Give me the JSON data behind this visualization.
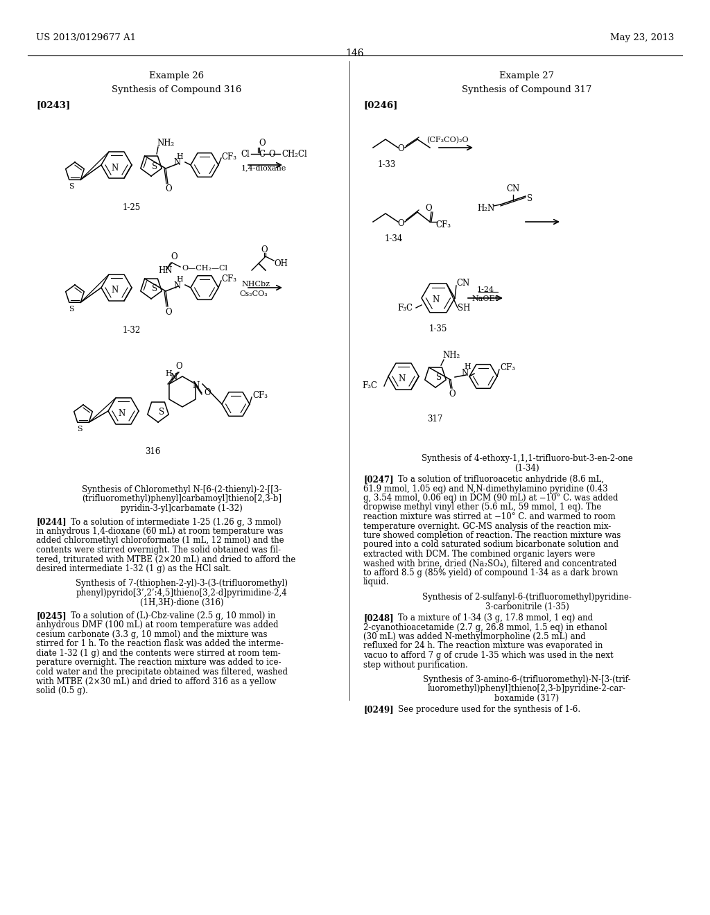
{
  "page_number": "146",
  "patent_number": "US 2013/0129677 A1",
  "patent_date": "May 23, 2013",
  "bg": "#ffffff",
  "left_example": "Example 26",
  "left_synth": "Synthesis of Compound 316",
  "left_ref": "[0243]",
  "right_example": "Example 27",
  "right_synth": "Synthesis of Compound 317",
  "right_ref": "[0246]",
  "label_125": "1-25",
  "label_132": "1-32",
  "label_316": "316",
  "label_133": "1-33",
  "label_134": "1-34",
  "label_135": "1-35",
  "label_317": "317",
  "reagent_dioxane": "1,4-dioxane",
  "reagent_nhcbz": "NHCbz",
  "reagent_cs2co3": "Cs₂CO₃",
  "reagent_cf3co2o": "(CF₃CO)₂O",
  "reagent_124": "1-24",
  "reagent_naoet": "NaOEt",
  "syn_title_132": "Synthesis of Chloromethyl N-[6-(2-thienyl)-2-[[3-\n(trifluoromethyl)phenyl]carbamoyl]thieno[2,3-b]\npyridin-3-yl]carbamate (1-32)",
  "syn_title_316": "Synthesis of 7-(thiophen-2-yl)-3-(3-(trifluoromethyl)\nphenyl)pyrido[3’,2’:4,5]thieno[3,2-d]pyrimidine-2,4\n(1H,3H)-dione (316)",
  "p0244": "[0244]    To a solution of intermediate 1-25 (1.26 g, 3 mmol)\nin anhydrous 1,4-dioxane (60 mL) at room temperature was\nadded chloromethyl chloroformate (1 mL, 12 mmol) and the\ncontents were stirred overnight. The solid obtained was fil-\ntered, triturated with MTBE (2×20 mL) and dried to afford the\ndesired intermediate 1-32 (1 g) as the HCl salt.",
  "p0245": "[0245]    To a solution of (L)-Cbz-valine (2.5 g, 10 mmol) in\nanhydrous DMF (100 mL) at room temperature was added\ncesium carbonate (3.3 g, 10 mmol) and the mixture was\nstirred for 1 h. To the reaction flask was added the interme-\ndiate 1-32 (1 g) and the contents were stirred at room tem-\nperature overnight. The reaction mixture was added to ice-\ncold water and the precipitate obtained was filtered, washed\nwith MTBE (2×30 mL) and dried to afford 316 as a yellow\nsolid (0.5 g).",
  "syn_title_134": "Synthesis of 4-ethoxy-1,1,1-trifluoro-but-3-en-2-one\n(1-34)",
  "p0247": "[0247]    To a solution of trifluoroacetic anhydride (8.6 mL,\n61.9 mmol, 1.05 eq) and N,N-dimethylamino pyridine (0.43\ng, 3.54 mmol, 0.06 eq) in DCM (90 mL) at −10° C. was added\ndropwise methyl vinyl ether (5.6 mL, 59 mmol, 1 eq). The\nreaction mixture was stirred at −10° C. and warmed to room\ntemperature overnight. GC-MS analysis of the reaction mix-\nture showed completion of reaction. The reaction mixture was\npoured into a cold saturated sodium bicarbonate solution and\nextracted with DCM. The combined organic layers were\nwashed with brine, dried (Na₂SO₄), filtered and concentrated\nto afford 8.5 g (85% yield) of compound 1-34 as a dark brown\nliquid.",
  "syn_title_135": "Synthesis of 2-sulfanyl-6-(trifluoromethyl)pyridine-\n3-carbonitrile (1-35)",
  "p0248": "[0248]    To a mixture of 1-34 (3 g, 17.8 mmol, 1 eq) and\n2-cyanothioacetamide (2.7 g, 26.8 mmol, 1.5 eq) in ethanol\n(30 mL) was added N-methylmorpholine (2.5 mL) and\nrefluxed for 24 h. The reaction mixture was evaporated in\nvacuo to afford 7 g of crude 1-35 which was used in the next\nstep without purification.",
  "syn_title_317": "Synthesis of 3-amino-6-(trifluoromethyl)-N-[3-(trif-\nluoromethyl)phenyl]thieno[2,3-b]pyridine-2-car-\nboxamide (317)",
  "p0249": "[0249]    See procedure used for the synthesis of 1-6."
}
